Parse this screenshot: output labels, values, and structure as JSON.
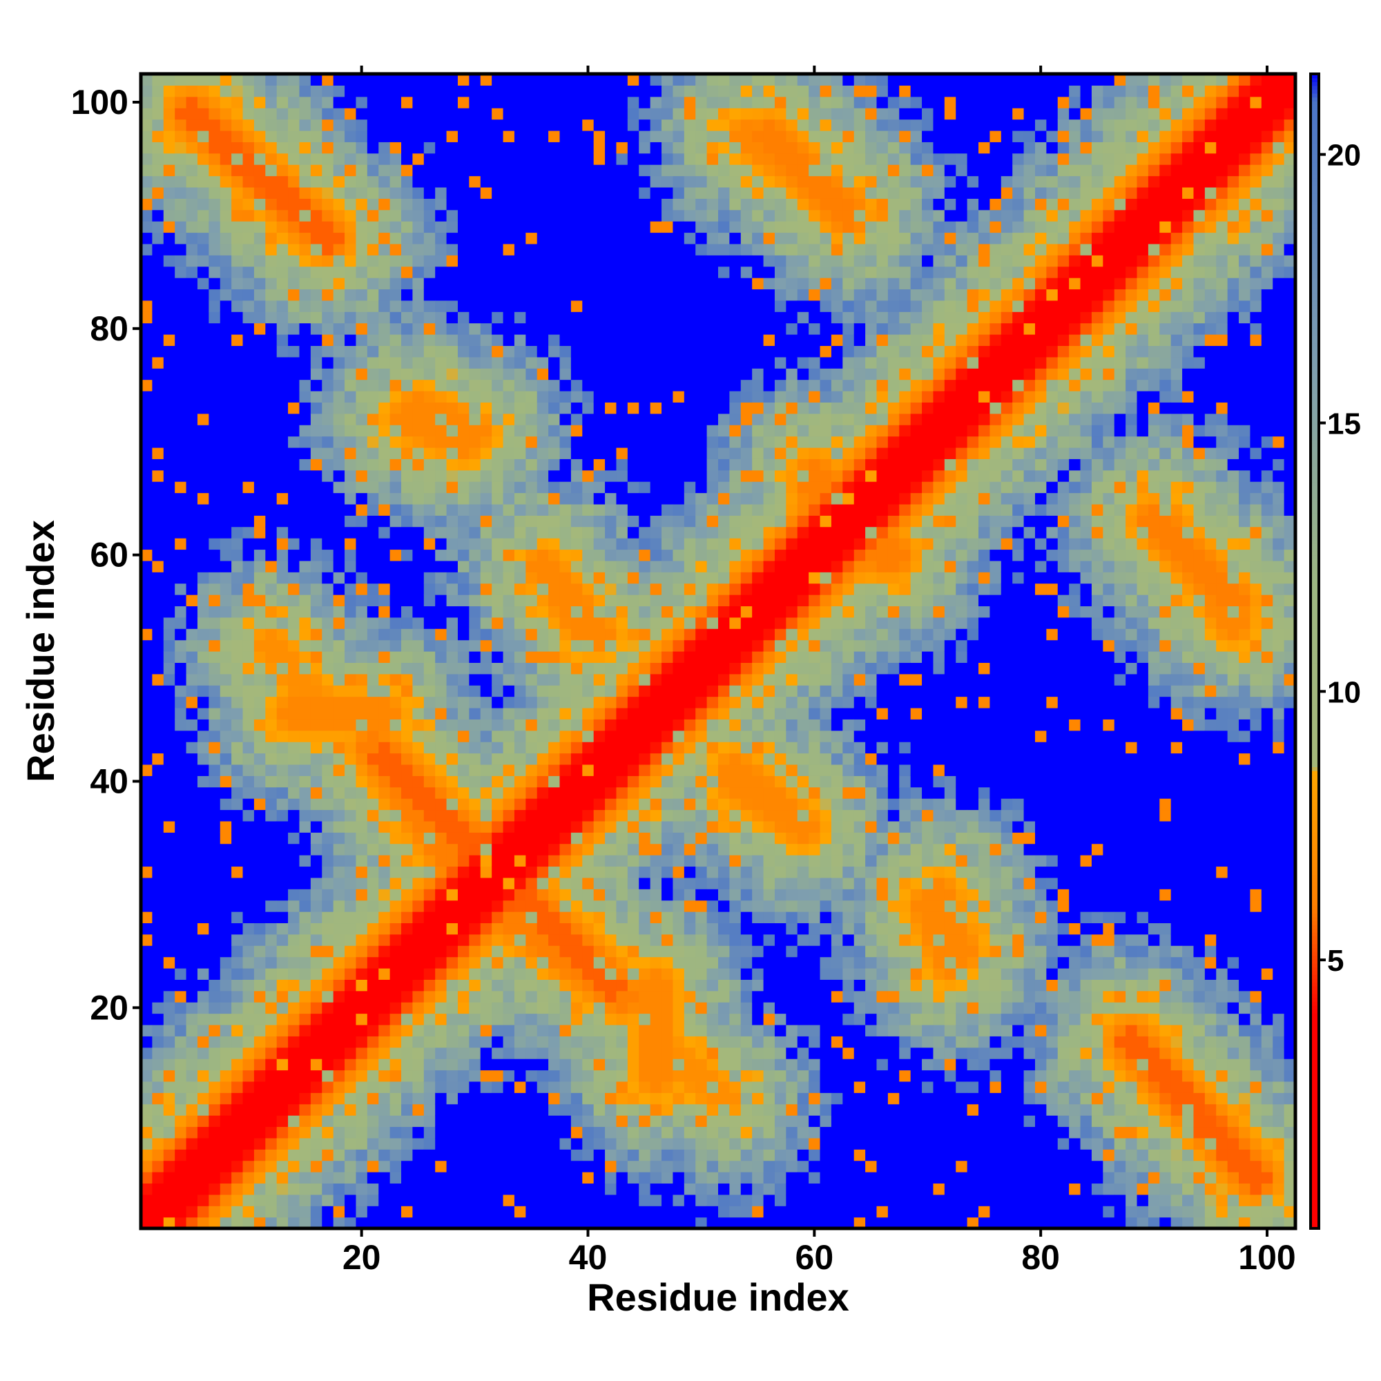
{
  "chart_data": {
    "type": "heatmap",
    "title": "",
    "xlabel": "Residue index",
    "ylabel": "Residue index",
    "n": 102,
    "xlim": [
      0.5,
      102.5
    ],
    "ylim": [
      0.5,
      102.5
    ],
    "x_ticks": [
      20,
      40,
      60,
      80,
      100
    ],
    "y_ticks": [
      20,
      40,
      60,
      80,
      100
    ],
    "colorbar": {
      "ticks": [
        5,
        10,
        15,
        20
      ],
      "range": [
        0,
        21.5
      ],
      "stops": [
        {
          "value": 0.0,
          "color": "#ff0000"
        },
        {
          "value": 4.0,
          "color": "#ff0000"
        },
        {
          "value": 6.0,
          "color": "#ff7f00"
        },
        {
          "value": 8.5,
          "color": "#ffa500"
        },
        {
          "value": 8.6,
          "color": "#a5b87a"
        },
        {
          "value": 12.0,
          "color": "#9db682"
        },
        {
          "value": 16.0,
          "color": "#7f9fae"
        },
        {
          "value": 21.0,
          "color": "#4b75c8"
        },
        {
          "value": 21.5,
          "color": "#0000ff"
        }
      ]
    },
    "grid": false,
    "legend": "colorbar-right",
    "diagonal_band": {
      "i_from": 1,
      "i_to": 102,
      "value": 2.5
    },
    "contact_segments": [
      {
        "from": [
          1,
          1
        ],
        "to": [
          102,
          102
        ],
        "value": 2.5
      },
      {
        "from": [
          5,
          99
        ],
        "to": [
          16,
          89
        ],
        "value": 5.5
      },
      {
        "from": [
          54,
          97
        ],
        "to": [
          63,
          91
        ],
        "value": 6.5
      },
      {
        "from": [
          22,
          42
        ],
        "to": [
          31,
          33
        ],
        "value": 5.5
      },
      {
        "from": [
          33,
          28
        ],
        "to": [
          43,
          21
        ],
        "value": 6.0
      },
      {
        "from": [
          88,
          17
        ],
        "to": [
          99,
          5
        ],
        "value": 5.5
      },
      {
        "from": [
          90,
          63
        ],
        "to": [
          97,
          56
        ],
        "value": 6.0
      },
      {
        "from": [
          36,
          59
        ],
        "to": [
          40,
          53
        ],
        "value": 6.5
      },
      {
        "from": [
          53,
          41
        ],
        "to": [
          59,
          36
        ],
        "value": 6.5
      },
      {
        "from": [
          24,
          72
        ],
        "to": [
          29,
          70
        ],
        "value": 6.5
      },
      {
        "from": [
          14,
          46
        ],
        "to": [
          22,
          46
        ],
        "value": 6.5
      },
      {
        "from": [
          60,
          67
        ],
        "to": [
          66,
          60
        ],
        "value": 6.0
      },
      {
        "from": [
          71,
          30
        ],
        "to": [
          73,
          25
        ],
        "value": 6.5
      },
      {
        "from": [
          46,
          17
        ],
        "to": [
          52,
          12
        ],
        "value": 7.0
      }
    ]
  }
}
